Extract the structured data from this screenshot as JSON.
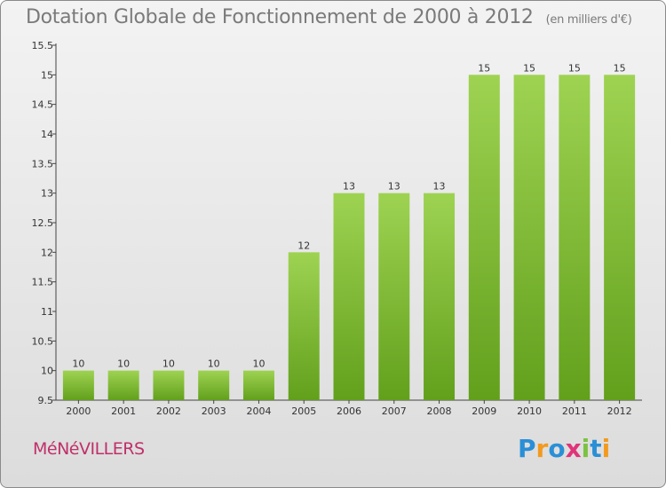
{
  "header": {
    "title": "Dotation Globale de Fonctionnement de 2000 à 2012",
    "subtitle": "(en milliers d'€)"
  },
  "footer": {
    "commune": "MéNéVILLERS",
    "logo": [
      "P",
      "r",
      "o",
      "x",
      "i",
      "t",
      "i"
    ]
  },
  "colors": {
    "bar_light": "#9ed352",
    "bar_dark": "#62a01c",
    "logo": [
      "#2a8fd6",
      "#f29a1f",
      "#2a8fd6",
      "#e0347a",
      "#7cc242",
      "#2a8fd6",
      "#f29a1f"
    ]
  },
  "chart_data": {
    "type": "bar",
    "categories": [
      "2000",
      "2001",
      "2002",
      "2003",
      "2004",
      "2005",
      "2006",
      "2007",
      "2008",
      "2009",
      "2010",
      "2011",
      "2012"
    ],
    "values": [
      10,
      10,
      10,
      10,
      10,
      12,
      13,
      13,
      13,
      15,
      15,
      15,
      15
    ],
    "value_labels": [
      "10",
      "10",
      "10",
      "10",
      "10",
      "12",
      "13",
      "13",
      "13",
      "15",
      "15",
      "15",
      "15"
    ],
    "ylim": [
      9.5,
      15.5
    ],
    "yticks": [
      9.5,
      10,
      10.5,
      11,
      11.5,
      12,
      12.5,
      13,
      13.5,
      14,
      14.5,
      15,
      15.5
    ],
    "ytick_labels": [
      "9.5",
      "10",
      "10.5",
      "11",
      "11.5",
      "12",
      "12.5",
      "13",
      "13.5",
      "14",
      "14.5",
      "15",
      "15.5"
    ],
    "grid": false,
    "legend": "none"
  }
}
